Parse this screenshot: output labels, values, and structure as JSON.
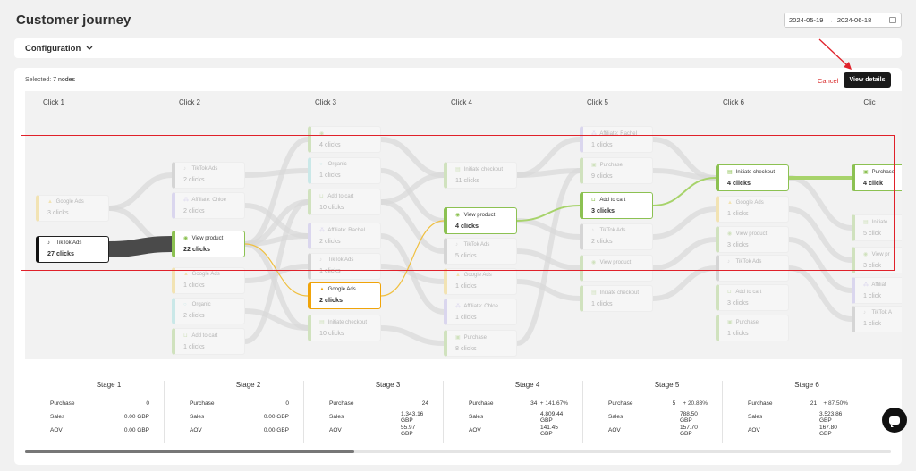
{
  "header": {
    "title": "Customer journey",
    "date_start": "2024-05-19",
    "date_arrow": "→",
    "date_end": "2024-06-18"
  },
  "config": {
    "label": "Configuration"
  },
  "toolbar": {
    "selected_prefix": "Selected:",
    "selected_value": "7 nodes",
    "cancel_label": "Cancel",
    "view_details_label": "View details"
  },
  "columns": [
    "Click 1",
    "Click 2",
    "Click 3",
    "Click 4",
    "Click 5",
    "Click 6",
    "Clic"
  ],
  "colors": {
    "tiktok": "#222222",
    "google": "#f4c430",
    "affiliate": "#a89de6",
    "organic": "#78d6d6",
    "cart": "#8cc152",
    "shopify": "#8cc152",
    "active": "#8cc152",
    "orange": "#f0a40a",
    "grey": "#9a9a9a"
  },
  "nodes": [
    {
      "label": "Google Ads",
      "count": "3 clicks",
      "icon": "google-ads-icon",
      "glyph": "▲",
      "color": "#f4c430"
    },
    {
      "label": "TikTok Ads",
      "count": "27 clicks",
      "icon": "tiktok-icon",
      "glyph": "♪",
      "color": "#222222"
    },
    {
      "label": "TikTok Ads",
      "count": "2 clicks",
      "icon": "tiktok-icon",
      "glyph": "♪",
      "color": "#9a9a9a"
    },
    {
      "label": "Affiliate: Chloe",
      "count": "2 clicks",
      "icon": "affiliate-icon",
      "glyph": "⁂",
      "color": "#a89de6"
    },
    {
      "label": "View product",
      "count": "22 clicks",
      "icon": "eye-icon",
      "glyph": "◉",
      "color": "#8cc152"
    },
    {
      "label": "Google Ads",
      "count": "1 clicks",
      "icon": "google-ads-icon",
      "glyph": "▲",
      "color": "#f4c430"
    },
    {
      "label": "Organic",
      "count": "2 clicks",
      "icon": "search-icon",
      "glyph": "○",
      "color": "#78d6d6"
    },
    {
      "label": "Add to cart",
      "count": "1 clicks",
      "icon": "cart-icon",
      "glyph": "⊔",
      "color": "#8cc152"
    },
    {
      "label": "",
      "count": "4 clicks",
      "icon": "view-product-icon",
      "glyph": "◉",
      "color": "#8cc152"
    },
    {
      "label": "Organic",
      "count": "1 clicks",
      "icon": "search-icon",
      "glyph": "○",
      "color": "#78d6d6"
    },
    {
      "label": "Add to cart",
      "count": "10 clicks",
      "icon": "cart-icon",
      "glyph": "⊔",
      "color": "#8cc152"
    },
    {
      "label": "Affiliate: Rachel",
      "count": "2 clicks",
      "icon": "affiliate-icon",
      "glyph": "⁂",
      "color": "#a89de6"
    },
    {
      "label": "TikTok Ads",
      "count": "1 clicks",
      "icon": "tiktok-icon",
      "glyph": "♪",
      "color": "#9a9a9a"
    },
    {
      "label": "Google Ads",
      "count": "2 clicks",
      "icon": "google-ads-icon",
      "glyph": "▲",
      "color": "#f0a40a"
    },
    {
      "label": "Initiate checkout",
      "count": "10 clicks",
      "icon": "checkout-icon",
      "glyph": "▤",
      "color": "#8cc152"
    },
    {
      "label": "Initiate checkout",
      "count": "11 clicks",
      "icon": "checkout-icon",
      "glyph": "▤",
      "color": "#8cc152"
    },
    {
      "label": "View product",
      "count": "4 clicks",
      "icon": "eye-icon",
      "glyph": "◉",
      "color": "#8cc152"
    },
    {
      "label": "TikTok Ads",
      "count": "5 clicks",
      "icon": "tiktok-icon",
      "glyph": "♪",
      "color": "#9a9a9a"
    },
    {
      "label": "Google Ads",
      "count": "1 clicks",
      "icon": "google-ads-icon",
      "glyph": "▲",
      "color": "#f4c430"
    },
    {
      "label": "Affiliate: Chloe",
      "count": "1 clicks",
      "icon": "affiliate-icon",
      "glyph": "⁂",
      "color": "#a89de6"
    },
    {
      "label": "Purchase",
      "count": "8 clicks",
      "icon": "shopify-bag-icon",
      "glyph": "▣",
      "color": "#8cc152"
    },
    {
      "label": "Affiliate: Rachel",
      "count": "1 clicks",
      "icon": "affiliate-icon",
      "glyph": "⁂",
      "color": "#a89de6"
    },
    {
      "label": "Purchase",
      "count": "9 clicks",
      "icon": "shopify-bag-icon",
      "glyph": "▣",
      "color": "#8cc152"
    },
    {
      "label": "Add to cart",
      "count": "3 clicks",
      "icon": "cart-icon",
      "glyph": "⊔",
      "color": "#8cc152"
    },
    {
      "label": "TikTok Ads",
      "count": "2 clicks",
      "icon": "tiktok-icon",
      "glyph": "♪",
      "color": "#9a9a9a"
    },
    {
      "label": "View product",
      "count": "",
      "icon": "eye-icon",
      "glyph": "◉",
      "color": "#8cc152"
    },
    {
      "label": "Initiate checkout",
      "count": "1 clicks",
      "icon": "checkout-icon",
      "glyph": "▤",
      "color": "#8cc152"
    },
    {
      "label": "Initiate checkout",
      "count": "4 clicks",
      "icon": "checkout-icon",
      "glyph": "▤",
      "color": "#8cc152"
    },
    {
      "label": "Google Ads",
      "count": "1 clicks",
      "icon": "google-ads-icon",
      "glyph": "▲",
      "color": "#f4c430"
    },
    {
      "label": "View product",
      "count": "3 clicks",
      "icon": "eye-icon",
      "glyph": "◉",
      "color": "#8cc152"
    },
    {
      "label": "TikTok Ads",
      "count": "",
      "icon": "tiktok-icon",
      "glyph": "♪",
      "color": "#9a9a9a"
    },
    {
      "label": "Add to cart",
      "count": "3 clicks",
      "icon": "cart-icon",
      "glyph": "⊔",
      "color": "#8cc152"
    },
    {
      "label": "Purchase",
      "count": "1 clicks",
      "icon": "shopify-bag-icon",
      "glyph": "▣",
      "color": "#8cc152"
    },
    {
      "label": "Purchase",
      "count": "4 click",
      "icon": "shopify-bag-icon",
      "glyph": "▣",
      "color": "#8cc152"
    },
    {
      "label": "Initiate",
      "count": "5 click",
      "icon": "checkout-icon",
      "glyph": "▤",
      "color": "#8cc152"
    },
    {
      "label": "View pr",
      "count": "3 click",
      "icon": "eye-icon",
      "glyph": "◉",
      "color": "#8cc152"
    },
    {
      "label": "Affiliat",
      "count": "1 click",
      "icon": "affiliate-icon",
      "glyph": "⁂",
      "color": "#a89de6"
    },
    {
      "label": "TikTok A",
      "count": "1 click",
      "icon": "tiktok-icon",
      "glyph": "♪",
      "color": "#9a9a9a"
    }
  ],
  "stages": [
    {
      "name": "Stage 1",
      "purchase": "0",
      "purchase_pct": "",
      "sales": "0.00 GBP",
      "aov": "0.00 GBP"
    },
    {
      "name": "Stage 2",
      "purchase": "0",
      "purchase_pct": "",
      "sales": "0.00 GBP",
      "aov": "0.00 GBP"
    },
    {
      "name": "Stage 3",
      "purchase": "24",
      "purchase_pct": "",
      "sales": "1,343.16 GBP",
      "aov": "55.97 GBP"
    },
    {
      "name": "Stage 4",
      "purchase": "34",
      "purchase_pct": "+ 141.67%",
      "sales": "4,809.44 GBP",
      "aov": "141.45 GBP"
    },
    {
      "name": "Stage 5",
      "purchase": "5",
      "purchase_pct": "+ 20.83%",
      "sales": "788.50 GBP",
      "aov": "157.70 GBP"
    },
    {
      "name": "Stage 6",
      "purchase": "21",
      "purchase_pct": "+ 87.50%",
      "sales": "3,523.86 GBP",
      "aov": "167.80 GBP"
    }
  ],
  "stage_labels": {
    "purchase": "Purchase",
    "sales": "Sales",
    "aov": "AOV"
  }
}
